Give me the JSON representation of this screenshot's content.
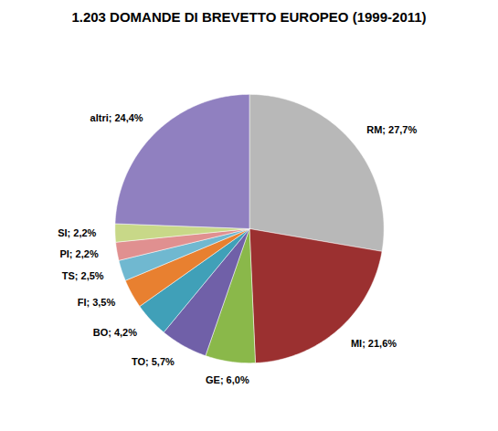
{
  "chart_data": {
    "type": "pie",
    "title": "1.203 DOMANDE DI BREVETTO EUROPEO (1999-2011)",
    "categories": [
      "RM",
      "MI",
      "GE",
      "TO",
      "BO",
      "FI",
      "TS",
      "PI",
      "SI",
      "altri"
    ],
    "values": [
      27.7,
      21.6,
      6.0,
      5.7,
      4.2,
      3.5,
      2.5,
      2.2,
      2.2,
      24.4
    ],
    "colors": [
      "#b8b8b8",
      "#9b3030",
      "#8ab84a",
      "#7060a8",
      "#40a0b8",
      "#e88030",
      "#70b8d0",
      "#e09090",
      "#c8d888",
      "#9080c0"
    ],
    "value_labels": [
      "RM; 27,7%",
      "MI; 21,6%",
      "GE; 6,0%",
      "TO; 5,7%",
      "BO; 4,2%",
      "FI; 3,5%",
      "TS; 2,5%",
      "PI; 2,2%",
      "SI; 2,2%",
      "altri; 24,4%"
    ],
    "data_labels": true
  }
}
